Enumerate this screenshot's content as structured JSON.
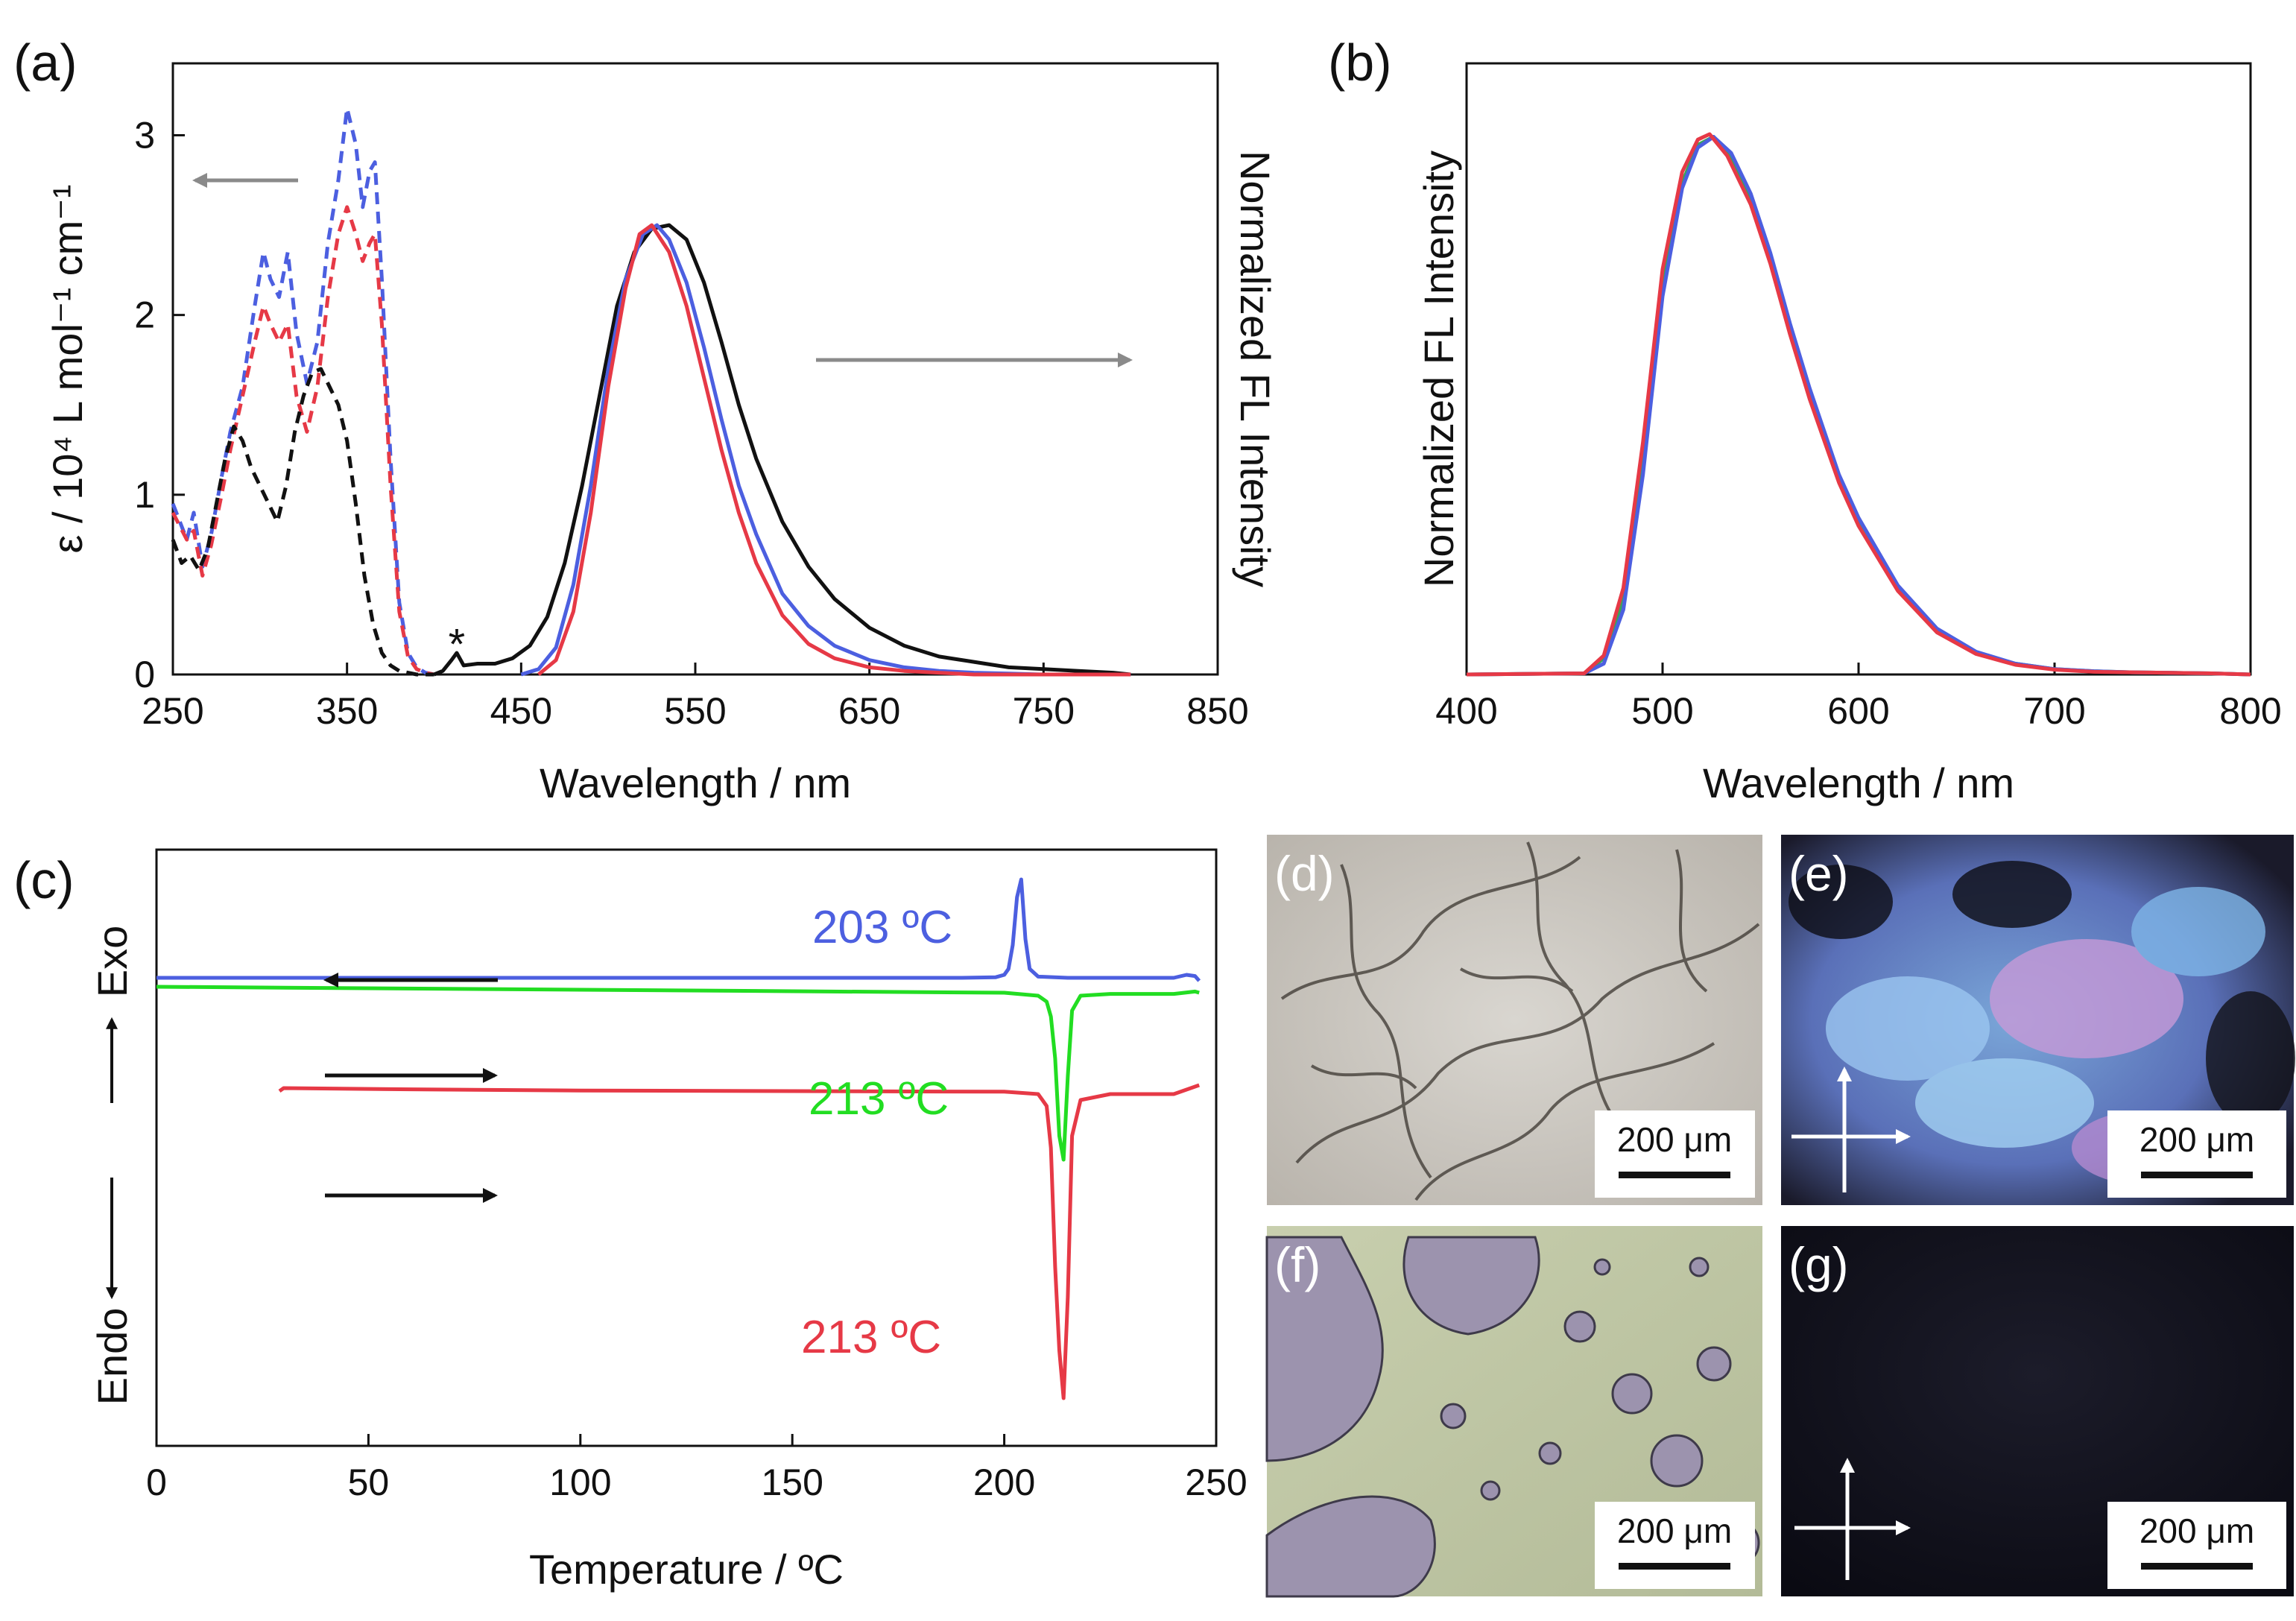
{
  "chart_data": [
    {
      "panel": "(a)",
      "type": "line",
      "xlabel": "Wavelength / nm",
      "ylabel": "ε / 10⁴ L mol⁻¹ cm⁻¹",
      "y2label": "Normalized FL Intensity",
      "xlim": [
        250,
        850
      ],
      "ylim": [
        0,
        3.4
      ],
      "xticks": [
        "250",
        "350",
        "450",
        "550",
        "650",
        "750",
        "850"
      ],
      "yticks": [
        "0",
        "1",
        "2",
        "3"
      ],
      "annotation": "*",
      "annotation_x": 413,
      "series": [
        {
          "name": "absorption-blue",
          "style": "dashed",
          "color": "#4c5fe0",
          "x": [
            250,
            258,
            262,
            267,
            272,
            278,
            283,
            290,
            297,
            302,
            306,
            311,
            316,
            321,
            327,
            333,
            339,
            345,
            350,
            355,
            359,
            363,
            366,
            370,
            375,
            380,
            385,
            390,
            395,
            400
          ],
          "y": [
            0.95,
            0.75,
            0.9,
            0.6,
            0.78,
            1.1,
            1.35,
            1.6,
            2.05,
            2.35,
            2.2,
            2.1,
            2.35,
            1.9,
            1.62,
            1.85,
            2.4,
            2.75,
            3.15,
            2.95,
            2.6,
            2.8,
            2.85,
            2.2,
            1.2,
            0.4,
            0.12,
            0.04,
            0.01,
            0
          ]
        },
        {
          "name": "absorption-red",
          "style": "dashed",
          "color": "#e63946",
          "x": [
            250,
            258,
            262,
            267,
            272,
            278,
            283,
            290,
            297,
            302,
            306,
            311,
            316,
            321,
            327,
            333,
            339,
            345,
            350,
            355,
            359,
            363,
            366,
            370,
            375,
            380,
            385,
            390,
            395,
            400
          ],
          "y": [
            0.9,
            0.75,
            0.8,
            0.55,
            0.72,
            1.0,
            1.25,
            1.55,
            1.85,
            2.05,
            1.95,
            1.85,
            1.95,
            1.55,
            1.35,
            1.6,
            2.1,
            2.45,
            2.6,
            2.45,
            2.3,
            2.4,
            2.45,
            1.95,
            1.05,
            0.35,
            0.1,
            0.03,
            0.01,
            0
          ]
        },
        {
          "name": "absorption-black",
          "style": "dashed",
          "color": "#111111",
          "x": [
            250,
            255,
            260,
            265,
            270,
            275,
            280,
            285,
            290,
            295,
            300,
            305,
            310,
            315,
            320,
            325,
            330,
            335,
            340,
            345,
            350,
            355,
            360,
            365,
            370,
            375,
            380,
            385,
            390,
            395,
            400
          ],
          "y": [
            0.75,
            0.62,
            0.66,
            0.58,
            0.7,
            0.95,
            1.2,
            1.38,
            1.3,
            1.15,
            1.05,
            0.95,
            0.85,
            1.05,
            1.35,
            1.55,
            1.68,
            1.7,
            1.6,
            1.5,
            1.3,
            0.95,
            0.55,
            0.28,
            0.12,
            0.05,
            0.02,
            0.01,
            0,
            0,
            0
          ]
        },
        {
          "name": "fl-black",
          "style": "solid",
          "color": "#111111",
          "x": [
            400,
            405,
            410,
            413,
            417,
            425,
            435,
            445,
            455,
            465,
            475,
            485,
            495,
            505,
            515,
            525,
            535,
            545,
            555,
            565,
            575,
            585,
            600,
            615,
            630,
            650,
            670,
            690,
            710,
            730,
            750,
            770,
            790,
            800
          ],
          "y": [
            0,
            0.02,
            0.08,
            0.12,
            0.05,
            0.06,
            0.06,
            0.09,
            0.16,
            0.32,
            0.62,
            1.05,
            1.55,
            2.05,
            2.35,
            2.48,
            2.5,
            2.42,
            2.18,
            1.85,
            1.5,
            1.2,
            0.85,
            0.6,
            0.42,
            0.26,
            0.16,
            0.1,
            0.07,
            0.04,
            0.03,
            0.02,
            0.01,
            0
          ]
        },
        {
          "name": "fl-blue",
          "style": "solid",
          "color": "#4c5fe0",
          "x": [
            450,
            460,
            470,
            480,
            490,
            500,
            510,
            520,
            528,
            535,
            545,
            555,
            565,
            575,
            585,
            600,
            615,
            630,
            650,
            670,
            690,
            710,
            730,
            750,
            770,
            800
          ],
          "y": [
            0,
            0.03,
            0.15,
            0.5,
            1.05,
            1.7,
            2.2,
            2.45,
            2.5,
            2.42,
            2.18,
            1.82,
            1.42,
            1.05,
            0.78,
            0.45,
            0.27,
            0.16,
            0.08,
            0.04,
            0.02,
            0.01,
            0.005,
            0,
            0,
            0
          ]
        },
        {
          "name": "fl-red",
          "style": "solid",
          "color": "#e63946",
          "x": [
            460,
            470,
            480,
            490,
            500,
            510,
            518,
            525,
            535,
            545,
            555,
            565,
            575,
            585,
            600,
            615,
            630,
            650,
            670,
            690,
            710,
            730,
            750,
            800
          ],
          "y": [
            0,
            0.08,
            0.35,
            0.9,
            1.6,
            2.15,
            2.45,
            2.5,
            2.35,
            2.05,
            1.65,
            1.25,
            0.9,
            0.62,
            0.33,
            0.17,
            0.09,
            0.04,
            0.02,
            0.01,
            0,
            0,
            0,
            0
          ]
        }
      ]
    },
    {
      "panel": "(b)",
      "type": "line",
      "xlabel": "Wavelength / nm",
      "ylabel": "Normalized FL Intensity",
      "xlim": [
        400,
        800
      ],
      "ylim": [
        0,
        1.0
      ],
      "xticks": [
        "400",
        "500",
        "600",
        "700",
        "800"
      ],
      "series": [
        {
          "name": "fl-green",
          "style": "solid",
          "color": "#3aa35a",
          "x": [
            400,
            460,
            470,
            480,
            490,
            500,
            510,
            518,
            526,
            535,
            545,
            555,
            565,
            575,
            590,
            600,
            620,
            640,
            660,
            680,
            700,
            720,
            740,
            760,
            780,
            800
          ],
          "y": [
            0,
            0.002,
            0.03,
            0.14,
            0.4,
            0.72,
            0.91,
            0.98,
            0.995,
            0.96,
            0.88,
            0.77,
            0.64,
            0.52,
            0.36,
            0.28,
            0.16,
            0.08,
            0.04,
            0.02,
            0.01,
            0.006,
            0.004,
            0.003,
            0.002,
            0
          ]
        },
        {
          "name": "fl-blue",
          "style": "solid",
          "color": "#4c5fe0",
          "x": [
            400,
            460,
            470,
            480,
            490,
            500,
            510,
            518,
            526,
            535,
            545,
            555,
            565,
            575,
            590,
            600,
            620,
            640,
            660,
            680,
            700,
            720,
            740,
            760,
            780,
            800
          ],
          "y": [
            0,
            0.002,
            0.02,
            0.12,
            0.37,
            0.7,
            0.9,
            0.975,
            0.995,
            0.965,
            0.89,
            0.78,
            0.65,
            0.53,
            0.37,
            0.29,
            0.165,
            0.085,
            0.042,
            0.02,
            0.01,
            0.006,
            0.004,
            0.003,
            0.002,
            0
          ]
        },
        {
          "name": "fl-red",
          "style": "solid",
          "color": "#e63946",
          "x": [
            400,
            460,
            470,
            480,
            490,
            500,
            510,
            518,
            524,
            533,
            545,
            555,
            565,
            575,
            590,
            600,
            620,
            640,
            660,
            680,
            700,
            720,
            740,
            760,
            780,
            800
          ],
          "y": [
            0,
            0.002,
            0.035,
            0.16,
            0.43,
            0.75,
            0.93,
            0.99,
            1.0,
            0.96,
            0.87,
            0.76,
            0.63,
            0.51,
            0.355,
            0.275,
            0.155,
            0.078,
            0.038,
            0.018,
            0.009,
            0.005,
            0.004,
            0.003,
            0.002,
            0
          ]
        }
      ]
    },
    {
      "panel": "(c)",
      "type": "line",
      "xlabel": "Temperature / ºC",
      "ylabel_top": "Exo",
      "ylabel_bottom": "Endo",
      "xlim": [
        0,
        250
      ],
      "ylim": [
        0,
        1
      ],
      "xticks": [
        "0",
        "50",
        "100",
        "150",
        "200",
        "250"
      ],
      "series": [
        {
          "name": "dsc-cooling-blue",
          "color": "#4c5fe0",
          "label": "203 ºC",
          "x": [
            0,
            100,
            190,
            198,
            200,
            201,
            202,
            203,
            204,
            205,
            206,
            208,
            215,
            240,
            243,
            245,
            246
          ],
          "y": [
            0.785,
            0.785,
            0.785,
            0.786,
            0.79,
            0.8,
            0.84,
            0.92,
            0.95,
            0.85,
            0.8,
            0.787,
            0.785,
            0.785,
            0.79,
            0.788,
            0.78
          ]
        },
        {
          "name": "dsc-heating-green",
          "color": "#22dd22",
          "label": "213 ºC",
          "x": [
            0,
            100,
            200,
            208,
            210,
            211,
            212,
            213,
            214,
            215,
            216,
            218,
            225,
            240,
            245,
            246
          ],
          "y": [
            0.77,
            0.765,
            0.76,
            0.755,
            0.745,
            0.72,
            0.65,
            0.52,
            0.48,
            0.62,
            0.73,
            0.755,
            0.758,
            0.758,
            0.762,
            0.76
          ]
        },
        {
          "name": "dsc-heating-red",
          "color": "#e63946",
          "label": "213 ºC",
          "x": [
            29,
            30,
            60,
            100,
            150,
            200,
            208,
            210,
            211,
            212,
            213,
            214,
            215,
            216,
            218,
            225,
            240,
            244,
            246
          ],
          "y": [
            0.595,
            0.6,
            0.598,
            0.596,
            0.595,
            0.594,
            0.59,
            0.57,
            0.5,
            0.3,
            0.16,
            0.08,
            0.25,
            0.52,
            0.58,
            0.59,
            0.59,
            0.6,
            0.605
          ]
        }
      ],
      "arrows": [
        "cooling-left",
        "heating-right",
        "heating-right"
      ]
    }
  ],
  "micrographs": [
    {
      "id": "d",
      "label": "(d)",
      "scale": "200 μm",
      "polarizer": false,
      "kind": "bright-field-crystal"
    },
    {
      "id": "e",
      "label": "(e)",
      "scale": "200 μm",
      "polarizer": true,
      "kind": "polarized-crystal"
    },
    {
      "id": "f",
      "label": "(f)",
      "scale": "200 μm",
      "polarizer": false,
      "kind": "bright-field-melt"
    },
    {
      "id": "g",
      "label": "(g)",
      "scale": "200 μm",
      "polarizer": true,
      "kind": "polarized-dark"
    }
  ]
}
